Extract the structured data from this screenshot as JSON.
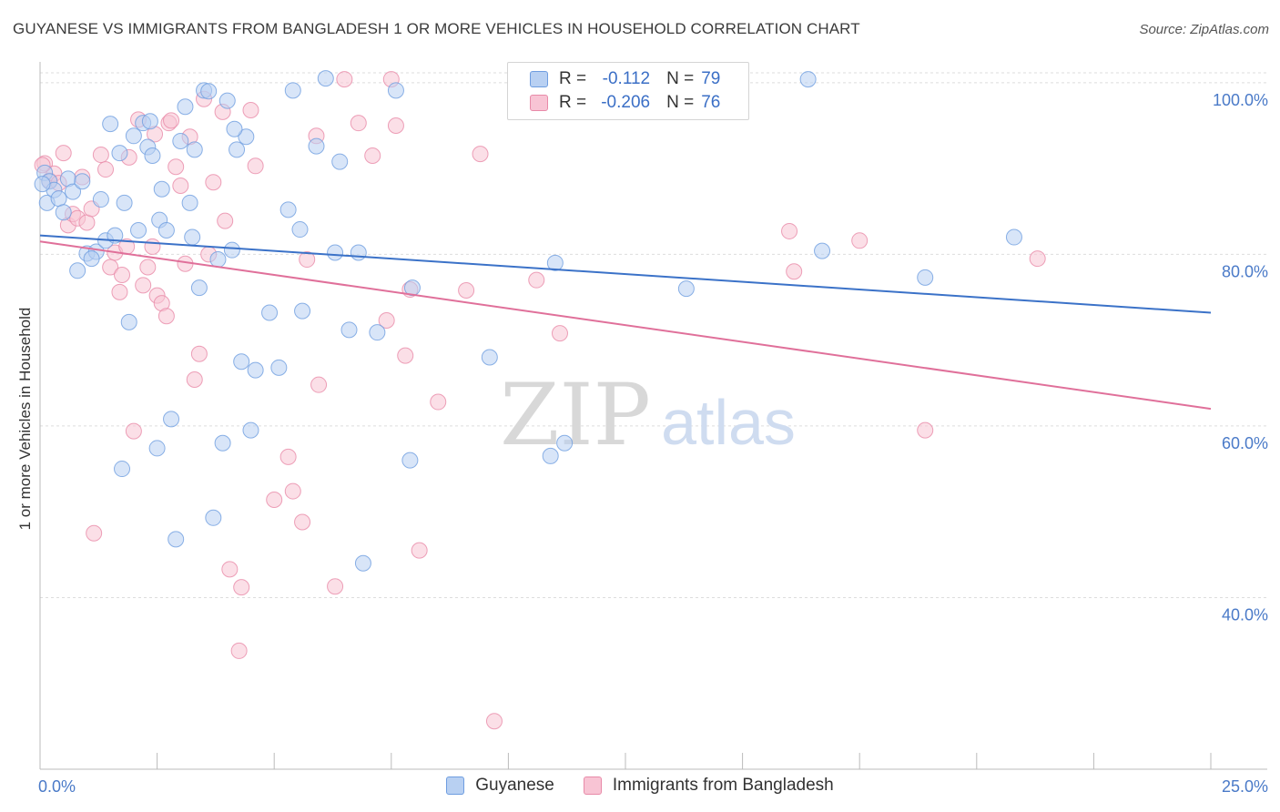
{
  "title": "GUYANESE VS IMMIGRANTS FROM BANGLADESH 1 OR MORE VEHICLES IN HOUSEHOLD CORRELATION CHART",
  "source": "Source: ZipAtlas.com",
  "watermark": {
    "zip": "ZIP",
    "atlas": "atlas"
  },
  "legend": {
    "rows": [
      {
        "r_label": "R =",
        "r_value": "-0.112",
        "n_label": "N =",
        "n_value": "79"
      },
      {
        "r_label": "R =",
        "r_value": "-0.206",
        "n_label": "N =",
        "n_value": "76"
      }
    ]
  },
  "colors": {
    "blue_fill": "#b8d0f2",
    "blue_stroke": "#6e9de0",
    "blue_line": "#3b72c8",
    "pink_fill": "#f8c4d4",
    "pink_stroke": "#e88aa8",
    "pink_line": "#e0709a",
    "tick_text": "#4a7ac8",
    "grid": "#dddddd"
  },
  "chart_data": {
    "type": "scatter",
    "title": "GUYANESE VS IMMIGRANTS FROM BANGLADESH 1 OR MORE VEHICLES IN HOUSEHOLD CORRELATION CHART",
    "xlabel": "",
    "ylabel": "1 or more Vehicles in Household",
    "xlim": [
      0,
      25
    ],
    "ylim": [
      20,
      102
    ],
    "x_tick_labels": [
      "0.0%",
      "25.0%"
    ],
    "y_ticks": [
      40,
      60,
      80,
      100
    ],
    "y_tick_labels": [
      "40.0%",
      "60.0%",
      "80.0%",
      "100.0%"
    ],
    "grid": true,
    "legend_position": "bottom",
    "series": [
      {
        "name": "Guyanese",
        "r": -0.112,
        "n": 79,
        "trend": {
          "x": [
            0,
            25
          ],
          "y": [
            82.2,
            73.2
          ]
        },
        "points": [
          [
            0.1,
            89.5
          ],
          [
            0.15,
            86
          ],
          [
            0.2,
            88.5
          ],
          [
            0.3,
            87.5
          ],
          [
            0.4,
            86.5
          ],
          [
            0.5,
            84.9
          ],
          [
            0.6,
            88.8
          ],
          [
            0.7,
            87.3
          ],
          [
            0.8,
            78.1
          ],
          [
            0.9,
            88.5
          ],
          [
            1.0,
            80.1
          ],
          [
            1.2,
            80.3
          ],
          [
            1.3,
            86.4
          ],
          [
            1.4,
            81.6
          ],
          [
            1.5,
            95.2
          ],
          [
            1.6,
            82.2
          ],
          [
            1.7,
            91.8
          ],
          [
            1.8,
            86.0
          ],
          [
            1.9,
            72.1
          ],
          [
            2.0,
            93.8
          ],
          [
            2.1,
            82.8
          ],
          [
            2.2,
            95.3
          ],
          [
            2.3,
            92.5
          ],
          [
            2.4,
            91.5
          ],
          [
            2.5,
            57.4
          ],
          [
            2.55,
            84.0
          ],
          [
            2.6,
            87.6
          ],
          [
            2.7,
            82.8
          ],
          [
            2.8,
            60.8
          ],
          [
            2.9,
            46.8
          ],
          [
            3.0,
            93.2
          ],
          [
            3.1,
            97.2
          ],
          [
            3.2,
            86.0
          ],
          [
            3.3,
            92.2
          ],
          [
            3.4,
            76.1
          ],
          [
            3.5,
            99.1
          ],
          [
            3.6,
            99.0
          ],
          [
            3.7,
            49.3
          ],
          [
            3.8,
            79.4
          ],
          [
            3.9,
            58.0
          ],
          [
            4.0,
            97.9
          ],
          [
            4.1,
            80.5
          ],
          [
            4.2,
            92.2
          ],
          [
            4.3,
            67.5
          ],
          [
            4.4,
            93.7
          ],
          [
            4.5,
            59.5
          ],
          [
            4.6,
            66.5
          ],
          [
            4.9,
            73.2
          ],
          [
            5.1,
            66.8
          ],
          [
            5.3,
            85.2
          ],
          [
            5.4,
            99.1
          ],
          [
            5.6,
            73.4
          ],
          [
            5.9,
            92.6
          ],
          [
            6.1,
            100.5
          ],
          [
            6.3,
            80.2
          ],
          [
            6.4,
            90.8
          ],
          [
            6.6,
            71.2
          ],
          [
            6.8,
            80.2
          ],
          [
            6.9,
            44.0
          ],
          [
            7.2,
            70.9
          ],
          [
            7.6,
            99.1
          ],
          [
            7.9,
            56.0
          ],
          [
            7.95,
            76.1
          ],
          [
            9.6,
            68.0
          ],
          [
            10.9,
            56.5
          ],
          [
            11.0,
            79.0
          ],
          [
            11.2,
            58.0
          ],
          [
            13.8,
            76.0
          ],
          [
            16.7,
            80.4
          ],
          [
            18.9,
            77.3
          ],
          [
            20.8,
            82.0
          ],
          [
            16.4,
            100.4
          ],
          [
            0.05,
            88.2
          ],
          [
            1.1,
            79.5
          ],
          [
            1.75,
            55.0
          ],
          [
            3.25,
            82.0
          ],
          [
            5.55,
            82.9
          ],
          [
            2.35,
            95.5
          ],
          [
            4.15,
            94.6
          ]
        ]
      },
      {
        "name": "Immigrants from Bangladesh",
        "r": -0.206,
        "n": 76,
        "trend": {
          "x": [
            0,
            25
          ],
          "y": [
            81.5,
            62.0
          ]
        },
        "points": [
          [
            0.1,
            90.6
          ],
          [
            0.2,
            88.6
          ],
          [
            0.3,
            89.4
          ],
          [
            0.4,
            88.3
          ],
          [
            0.5,
            91.8
          ],
          [
            0.6,
            83.4
          ],
          [
            0.7,
            84.7
          ],
          [
            0.8,
            84.2
          ],
          [
            0.9,
            89.0
          ],
          [
            1.0,
            83.7
          ],
          [
            1.1,
            85.3
          ],
          [
            1.15,
            47.5
          ],
          [
            1.3,
            91.6
          ],
          [
            1.4,
            89.9
          ],
          [
            1.5,
            78.5
          ],
          [
            1.6,
            80.2
          ],
          [
            1.7,
            75.6
          ],
          [
            1.75,
            77.6
          ],
          [
            1.9,
            91.3
          ],
          [
            2.0,
            59.4
          ],
          [
            2.1,
            95.7
          ],
          [
            2.2,
            76.4
          ],
          [
            2.3,
            78.5
          ],
          [
            2.4,
            80.9
          ],
          [
            2.5,
            75.2
          ],
          [
            2.6,
            74.3
          ],
          [
            2.7,
            72.8
          ],
          [
            2.75,
            95.3
          ],
          [
            2.8,
            95.6
          ],
          [
            2.9,
            90.2
          ],
          [
            3.0,
            88.0
          ],
          [
            3.1,
            78.9
          ],
          [
            3.2,
            93.7
          ],
          [
            3.3,
            65.4
          ],
          [
            3.4,
            68.4
          ],
          [
            3.5,
            98.1
          ],
          [
            3.6,
            80.0
          ],
          [
            3.7,
            88.4
          ],
          [
            3.9,
            96.6
          ],
          [
            3.95,
            83.9
          ],
          [
            4.05,
            43.3
          ],
          [
            4.25,
            33.8
          ],
          [
            4.3,
            41.2
          ],
          [
            4.5,
            96.8
          ],
          [
            4.6,
            90.3
          ],
          [
            5.0,
            51.4
          ],
          [
            5.3,
            56.4
          ],
          [
            5.4,
            52.4
          ],
          [
            5.6,
            48.8
          ],
          [
            5.7,
            79.4
          ],
          [
            5.9,
            93.8
          ],
          [
            5.95,
            64.8
          ],
          [
            6.3,
            41.3
          ],
          [
            6.5,
            100.4
          ],
          [
            6.8,
            95.3
          ],
          [
            7.1,
            91.5
          ],
          [
            7.4,
            72.3
          ],
          [
            7.5,
            100.4
          ],
          [
            7.6,
            95.0
          ],
          [
            7.8,
            68.2
          ],
          [
            7.9,
            75.9
          ],
          [
            8.1,
            45.5
          ],
          [
            8.5,
            62.8
          ],
          [
            9.1,
            75.8
          ],
          [
            9.4,
            91.7
          ],
          [
            9.7,
            25.6
          ],
          [
            10.6,
            77.0
          ],
          [
            11.1,
            70.8
          ],
          [
            16.0,
            82.7
          ],
          [
            16.1,
            78.0
          ],
          [
            17.5,
            81.6
          ],
          [
            18.9,
            59.5
          ],
          [
            21.3,
            79.5
          ],
          [
            0.05,
            90.4
          ],
          [
            1.85,
            80.9
          ],
          [
            2.45,
            94.0
          ]
        ]
      }
    ]
  }
}
